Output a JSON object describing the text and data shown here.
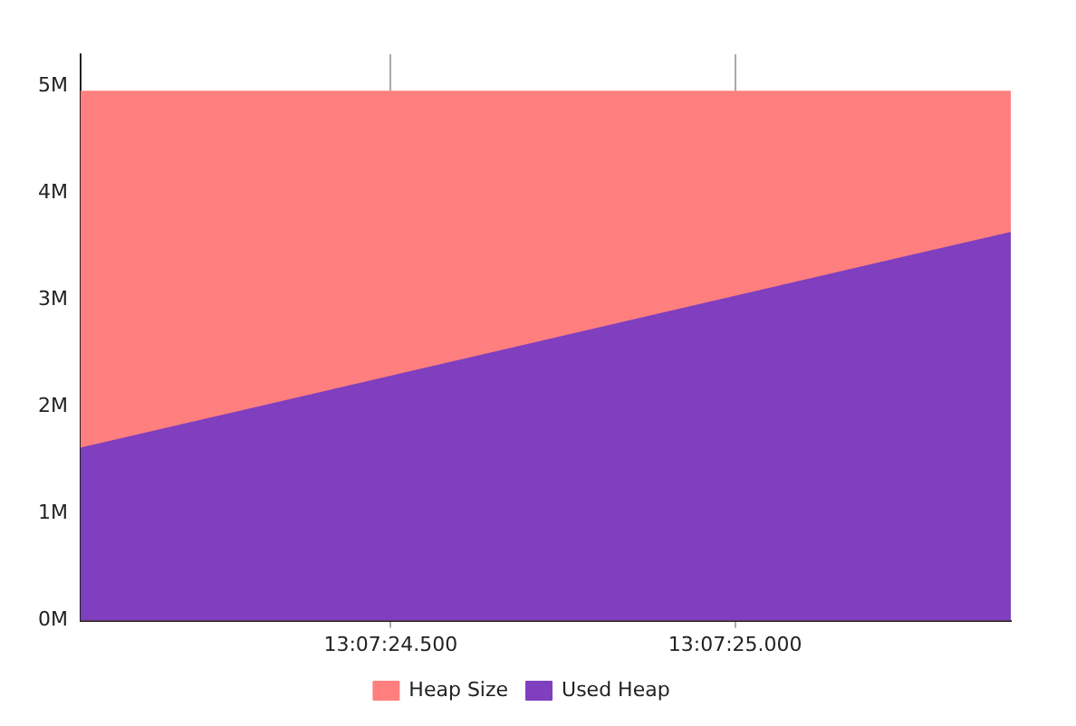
{
  "chart_data": {
    "type": "area",
    "categories": [
      null,
      null,
      null,
      null,
      null,
      null,
      null,
      null,
      null,
      "13:07:24.500",
      null,
      null,
      null,
      null,
      null,
      null,
      null,
      null,
      null,
      "13:07:25.000",
      null,
      null,
      null,
      null,
      null,
      null,
      null,
      null
    ],
    "series": [
      {
        "name": "Heap Size",
        "color": "#ff7f7f",
        "values": [
          4.95,
          null,
          null,
          null,
          null,
          null,
          null,
          null,
          null,
          null,
          null,
          null,
          null,
          null,
          null,
          null,
          null,
          null,
          null,
          null,
          null,
          null,
          null,
          null,
          null,
          null,
          null,
          4.95
        ]
      },
      {
        "name": "Used Heap",
        "color": "#7f3fbf",
        "values": [
          1.61,
          null,
          null,
          null,
          null,
          null,
          null,
          null,
          null,
          null,
          null,
          null,
          null,
          null,
          null,
          null,
          null,
          null,
          null,
          null,
          null,
          null,
          null,
          null,
          null,
          null,
          null,
          3.63
        ]
      }
    ],
    "ylim": [
      0,
      5.3
    ],
    "yticks": [
      {
        "value": 0,
        "label": "0M"
      },
      {
        "value": 1,
        "label": "1M"
      },
      {
        "value": 2,
        "label": "2M"
      },
      {
        "value": 3,
        "label": "3M"
      },
      {
        "value": 4,
        "label": "4M"
      },
      {
        "value": 5,
        "label": "5M"
      }
    ],
    "grid": "x",
    "legend": "bottom",
    "marker": "none"
  }
}
